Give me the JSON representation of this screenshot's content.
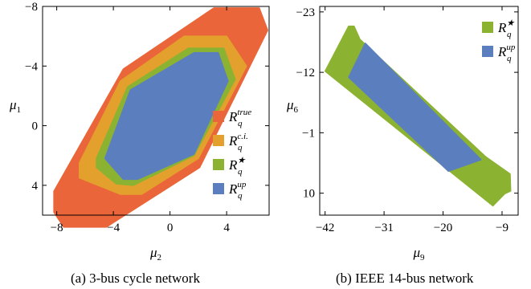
{
  "chart_data": [
    {
      "type": "area",
      "caption": "(a) 3-bus cycle network",
      "xlabel": "μ2",
      "ylabel": "μ1",
      "xlim": [
        -9,
        7
      ],
      "ylim": [
        -8,
        6
      ],
      "y_inverted": true,
      "x_ticks": [
        "−8",
        "−4",
        "0",
        "4"
      ],
      "x_tick_values": [
        -8,
        -4,
        0,
        4
      ],
      "y_ticks": [
        "−8",
        "−4",
        "0",
        "4"
      ],
      "y_tick_values": [
        -8,
        -4,
        0,
        4
      ],
      "legend_position": "bottom-right",
      "series": [
        {
          "name": "R_q^true",
          "label_main": "R",
          "label_sub": "q",
          "label_sup": "true",
          "color": "#ea6539",
          "points": [
            [
              -8.2,
              4.4
            ],
            [
              -3.3,
              -3.8
            ],
            [
              3.1,
              -7.9
            ],
            [
              6.3,
              -7.9
            ],
            [
              6.9,
              -6.4
            ],
            [
              2.1,
              2.8
            ],
            [
              -4.5,
              6.8
            ],
            [
              -7.5,
              6.8
            ],
            [
              -8.2,
              5.8
            ]
          ]
        },
        {
          "name": "R_q^c.i.",
          "label_main": "R",
          "label_sub": "q",
          "label_sup": "c.i.",
          "color": "#e3a02d",
          "points": [
            [
              -6.4,
              2.5
            ],
            [
              -3.5,
              -3.0
            ],
            [
              1.0,
              -6.0
            ],
            [
              4.0,
              -6.0
            ],
            [
              5.4,
              -4.0
            ],
            [
              2.0,
              2.2
            ],
            [
              -2.0,
              4.6
            ],
            [
              -3.5,
              4.6
            ],
            [
              -6.4,
              3.5
            ]
          ]
        },
        {
          "name": "R_q^★",
          "label_main": "R",
          "label_sub": "q",
          "label_sup": "★",
          "color": "#8cb232",
          "points": [
            [
              -5.2,
              2.2
            ],
            [
              -3.0,
              -2.6
            ],
            [
              1.3,
              -5.2
            ],
            [
              3.8,
              -5.2
            ],
            [
              4.6,
              -3.1
            ],
            [
              1.7,
              2.0
            ],
            [
              -2.6,
              4.0
            ],
            [
              -3.8,
              3.9
            ],
            [
              -5.2,
              2.8
            ]
          ]
        },
        {
          "name": "R_q^up",
          "label_main": "R",
          "label_sub": "q",
          "label_sup": "up",
          "color": "#5b7fbe",
          "points": [
            [
              -4.6,
              2.2
            ],
            [
              -2.8,
              -2.4
            ],
            [
              1.7,
              -4.9
            ],
            [
              3.4,
              -4.9
            ],
            [
              4.1,
              -3.0
            ],
            [
              1.7,
              1.9
            ],
            [
              -2.3,
              3.6
            ],
            [
              -3.3,
              3.6
            ]
          ]
        }
      ]
    },
    {
      "type": "area",
      "caption": "(b) IEEE 14-bus network",
      "xlabel": "μ9",
      "ylabel": "μ6",
      "xlim": [
        -43,
        -6
      ],
      "ylim": [
        -24,
        14
      ],
      "y_inverted": true,
      "x_ticks": [
        "−42",
        "−31",
        "−20",
        "−9"
      ],
      "x_tick_values": [
        -42,
        -31,
        -20,
        -9
      ],
      "y_ticks": [
        "−23",
        "−12",
        "−1",
        "10"
      ],
      "y_tick_values": [
        -23,
        -12,
        -1,
        10
      ],
      "legend_position": "top-right",
      "series": [
        {
          "name": "R_q^★",
          "label_main": "R",
          "label_sub": "q",
          "label_sup": "★",
          "color": "#8cb232",
          "points": [
            [
              -42.0,
              -12.2
            ],
            [
              -37.6,
              -20.4
            ],
            [
              -36.6,
              -20.4
            ],
            [
              -35.5,
              -18.0
            ],
            [
              -12.0,
              3.4
            ],
            [
              -7.5,
              6.5
            ],
            [
              -7.4,
              9.6
            ],
            [
              -8.5,
              10.1
            ],
            [
              -10.7,
              12.3
            ]
          ]
        },
        {
          "name": "R_q^up",
          "label_main": "R",
          "label_sub": "q",
          "label_sup": "up",
          "color": "#5b7fbe",
          "points": [
            [
              -37.6,
              -11.1
            ],
            [
              -34.5,
              -17.3
            ],
            [
              -12.9,
              3.9
            ],
            [
              -19.0,
              6.0
            ]
          ]
        }
      ]
    }
  ]
}
